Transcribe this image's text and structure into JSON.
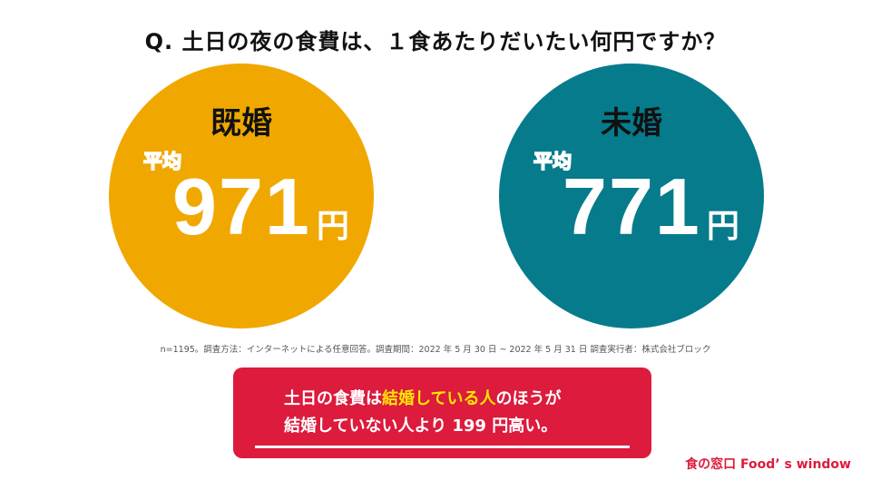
{
  "title": "Q. 土日の夜の食費は、１食あたりだいたい何円ですか？",
  "groups": [
    {
      "label": "既婚",
      "avg_label": "平均",
      "value": "971",
      "unit": "円",
      "color": "#f0a800"
    },
    {
      "label": "未婚",
      "avg_label": "平均",
      "value": "771",
      "unit": "円",
      "color": "#067b8c"
    }
  ],
  "footnote": "n=1195。調査方法：インターネットによる任意回答。調査期間：2022 年 5 月 30 日 ~ 2022 年 5 月 31 日 調査実行者：株式会社ブロック",
  "banner": {
    "line1_a": "土日の食費は",
    "line1_highlight": "結婚している人",
    "line1_b": "のほうが",
    "line2": "結婚していない人より 199 円高い。",
    "background": "#dc1b3d",
    "highlight_color": "#ffe600"
  },
  "brand": "食の窓口 Food’ s window"
}
